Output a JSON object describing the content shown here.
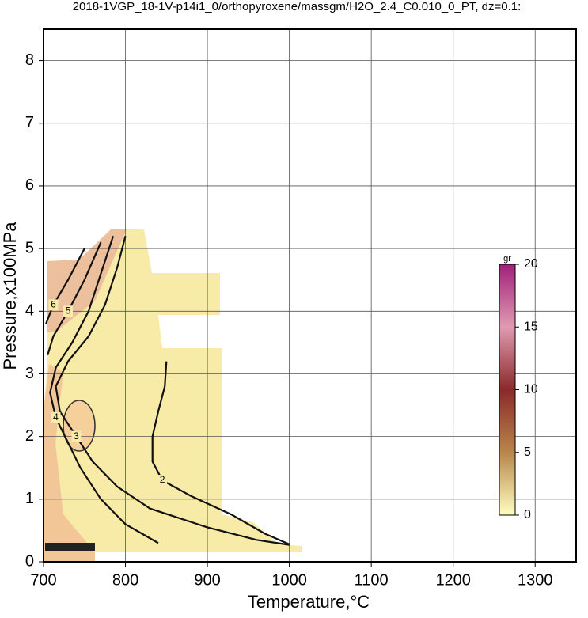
{
  "chart_data": {
    "type": "contour",
    "title": "2018-1VGP_18-1V-p14i1_0/orthopyroxene/massgm/H2O_2.4_C0.010_0_PT, dz=0.1:",
    "x_label": "Temperature,°C",
    "y_label": "Pressure,x100MPa",
    "xlim": [
      700,
      1350
    ],
    "ylim": [
      0,
      8.5
    ],
    "xticks": [
      700,
      800,
      900,
      1000,
      1100,
      1200,
      1300
    ],
    "yticks": [
      0,
      1,
      2,
      3,
      4,
      5,
      6,
      7,
      8
    ],
    "grid": true,
    "contours": [
      {
        "level": 2,
        "x": [
          850,
          848,
          840,
          833,
          833,
          845,
          880,
          930,
          970,
          1000
        ],
        "y": [
          3.2,
          2.8,
          2.4,
          2.0,
          1.6,
          1.3,
          1.05,
          0.75,
          0.45,
          0.28
        ]
      },
      {
        "level": 3,
        "x": [
          800,
          790,
          775,
          755,
          730,
          715,
          720,
          740,
          760,
          790,
          830,
          900,
          960,
          1000
        ],
        "y": [
          5.2,
          4.7,
          4.1,
          3.6,
          3.2,
          2.8,
          2.4,
          2.0,
          1.6,
          1.2,
          0.85,
          0.55,
          0.35,
          0.27
        ]
      },
      {
        "level": 4,
        "x": [
          785,
          770,
          755,
          735,
          715,
          708,
          715,
          730,
          745,
          770,
          800,
          840
        ],
        "y": [
          5.2,
          4.6,
          4.0,
          3.5,
          3.1,
          2.7,
          2.3,
          1.9,
          1.5,
          1.0,
          0.6,
          0.3
        ]
      },
      {
        "level": 5,
        "x": [
          770,
          750,
          730,
          712,
          705
        ],
        "y": [
          5.1,
          4.5,
          4.0,
          3.6,
          3.3
        ]
      },
      {
        "level": 6,
        "x": [
          750,
          730,
          712,
          703
        ],
        "y": [
          5.0,
          4.5,
          4.1,
          3.8
        ]
      }
    ],
    "colorbar": {
      "label": "gr",
      "lim": [
        0,
        20
      ],
      "ticks": [
        0,
        5,
        10,
        15,
        20
      ]
    }
  }
}
